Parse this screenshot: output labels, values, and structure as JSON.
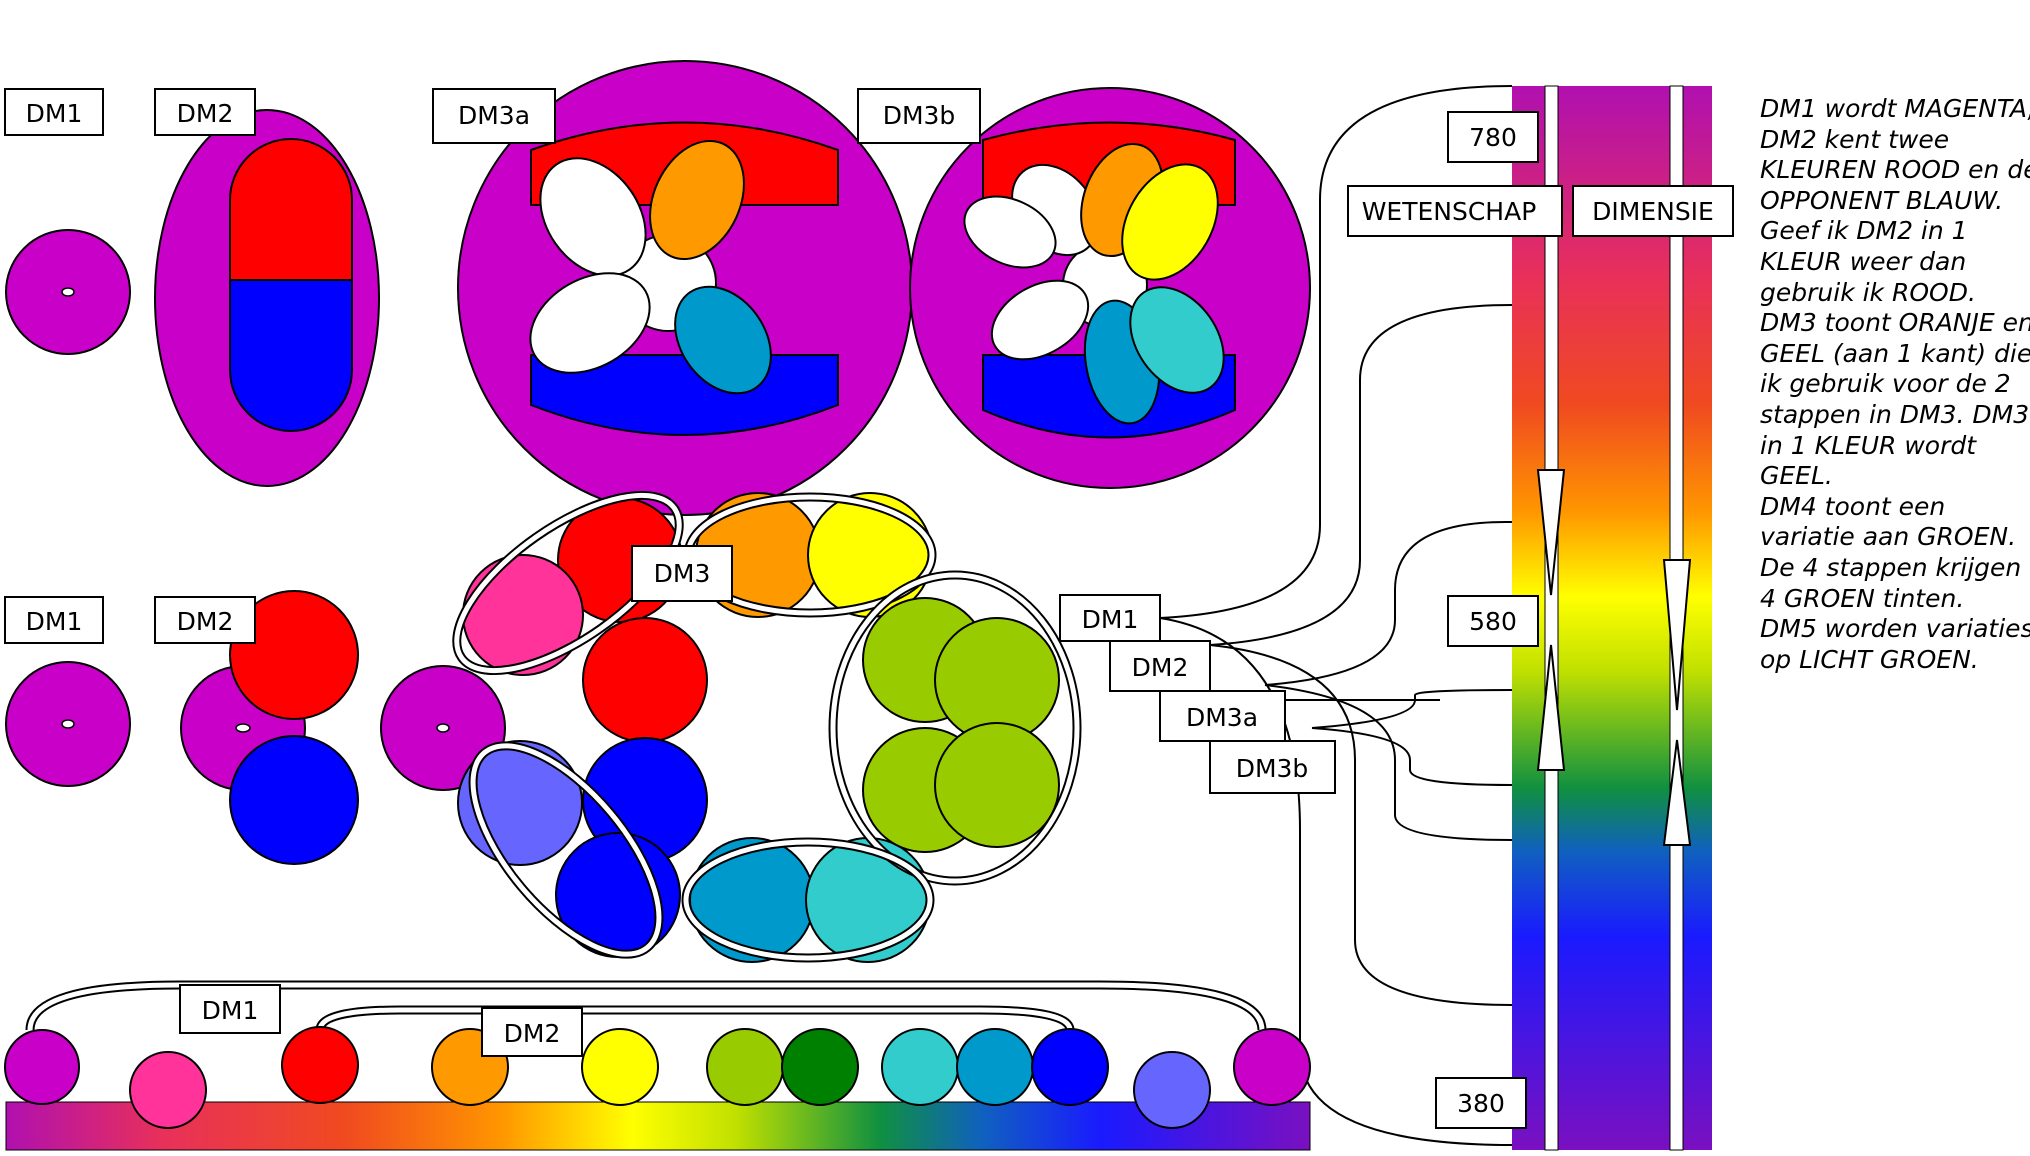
{
  "labels": {
    "top": {
      "dm1": "DM1",
      "dm2": "DM2",
      "dm3a": "DM3a",
      "dm3b": "DM3b"
    },
    "middle": {
      "dm1": "DM1",
      "dm2": "DM2",
      "dm3": "DM3"
    },
    "links": {
      "dm1": "DM1",
      "dm2": "DM2",
      "dm3a": "DM3a",
      "dm3b": "DM3b"
    },
    "bottom": {
      "dm1": "DM1",
      "dm2": "DM2"
    }
  },
  "spectrum": {
    "ticks": [
      "780",
      "580",
      "380"
    ],
    "headers": {
      "left": "WETENSCHAP",
      "right": "DIMENSIE"
    }
  },
  "description": [
    "DM1 wordt MAGENTA,",
    "DM2 kent twee",
    "KLEUREN ROOD en de",
    "OPPONENT BLAUW.",
    "Geef ik DM2 in 1",
    "KLEUR weer dan",
    "gebruik ik ROOD.",
    "DM3 toont ORANJE en",
    "GEEL (aan 1 kant) die",
    "ik gebruik voor de 2",
    "stappen in DM3. DM3",
    "in 1 KLEUR wordt",
    "GEEL.",
    "DM4 toont een",
    "variatie aan GROEN.",
    "De 4 stappen krijgen",
    "4 GROEN tinten.",
    "DM5 worden variaties",
    "op LICHT GROEN."
  ],
  "colors": {
    "magenta": "#c800c8",
    "pink": "#ff3399",
    "red": "#ff0000",
    "orange": "#ff9900",
    "yellow": "#ffff00",
    "lime": "#99cc00",
    "green": "#008000",
    "teal": "#33cccc",
    "cyan": "#0099cc",
    "blue": "#0000ff",
    "lavender": "#6666ff"
  }
}
